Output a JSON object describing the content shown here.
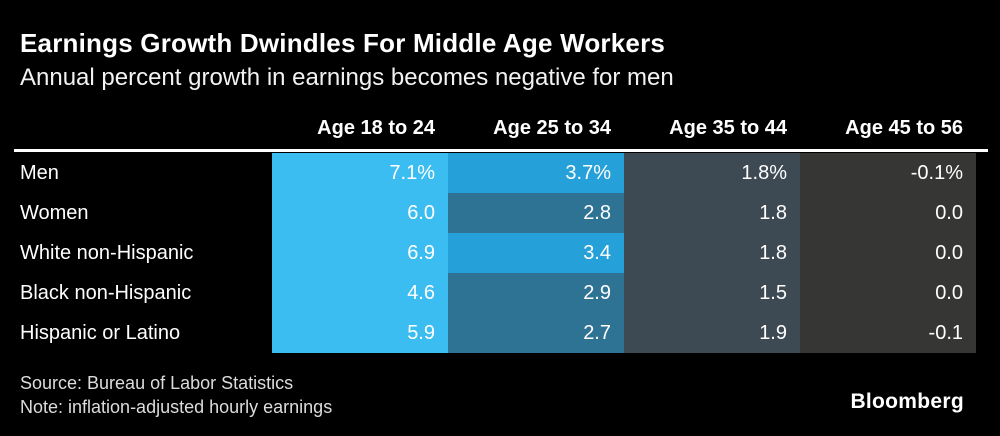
{
  "title": "Earnings Growth Dwindles For Middle Age Workers",
  "subtitle": "Annual percent growth in earnings becomes negative for men",
  "footer": {
    "source": "Source: Bureau of Labor Statistics",
    "note": "Note: inflation-adjusted hourly earnings"
  },
  "brand": "Bloomberg",
  "colors": {
    "background": "#000000",
    "rule": "#ffffff",
    "col_age_18_24": "#3bbdf2",
    "col_age_25_34_high": "#25a0d8",
    "col_age_25_34_low": "#2f7394",
    "col_age_35_44": "#3d4a54",
    "col_age_45_56": "#363634",
    "text": "#ffffff",
    "footer_text": "#dcdcdc"
  },
  "chart_data": {
    "type": "heatmap",
    "title": "Earnings Growth Dwindles For Middle Age Workers",
    "subtitle": "Annual percent growth in earnings becomes negative for men",
    "columns": [
      "Age 18 to 24",
      "Age 25 to 34",
      "Age 35 to 44",
      "Age 45 to 56"
    ],
    "rows": [
      "Men",
      "Women",
      "White non-Hispanic",
      "Black non-Hispanic",
      "Hispanic or Latino"
    ],
    "values": [
      [
        7.1,
        3.7,
        1.8,
        -0.1
      ],
      [
        6.0,
        2.8,
        1.8,
        0.0
      ],
      [
        6.9,
        3.4,
        1.8,
        0.0
      ],
      [
        4.6,
        2.9,
        1.5,
        0.0
      ],
      [
        5.9,
        2.7,
        1.9,
        -0.1
      ]
    ],
    "display": [
      [
        "7.1%",
        "3.7%",
        "1.8%",
        "-0.1%"
      ],
      [
        "6.0",
        "2.8",
        "1.8",
        "0.0"
      ],
      [
        "6.9",
        "3.4",
        "1.8",
        "0.0"
      ],
      [
        "4.6",
        "2.9",
        "1.5",
        "0.0"
      ],
      [
        "5.9",
        "2.7",
        "1.9",
        "-0.1"
      ]
    ],
    "cell_colors": [
      [
        "#3bbdf2",
        "#25a0d8",
        "#3d4a54",
        "#363634"
      ],
      [
        "#3bbdf2",
        "#2f7394",
        "#3d4a54",
        "#363634"
      ],
      [
        "#3bbdf2",
        "#25a0d8",
        "#3d4a54",
        "#363634"
      ],
      [
        "#3bbdf2",
        "#2f7394",
        "#3d4a54",
        "#363634"
      ],
      [
        "#3bbdf2",
        "#2f7394",
        "#3d4a54",
        "#363634"
      ]
    ],
    "units": "percent",
    "legend": "none",
    "grid": false
  }
}
